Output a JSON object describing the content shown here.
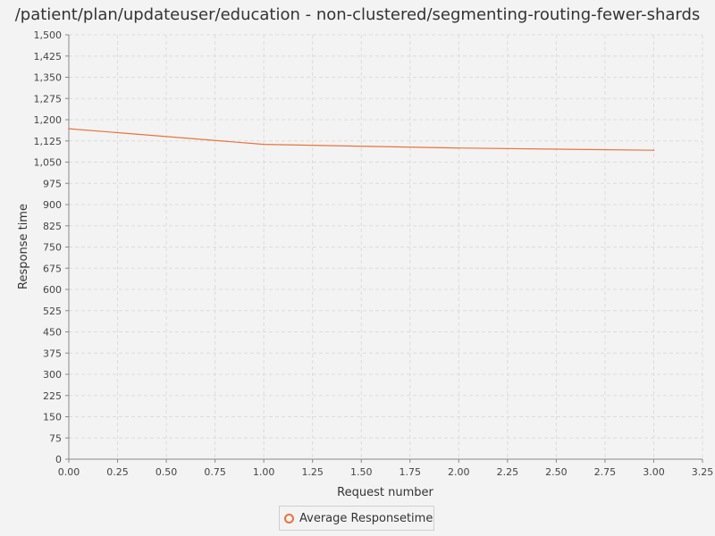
{
  "chart_data": {
    "type": "line",
    "title": "/patient/plan/updateuser/education - non-clustered/segmenting-routing-fewer-shards",
    "xlabel": "Request number",
    "ylabel": "Response time",
    "xlim": [
      0,
      3.25
    ],
    "ylim": [
      0,
      1500
    ],
    "x_ticks": [
      "0.00",
      "0.25",
      "0.50",
      "0.75",
      "1.00",
      "1.25",
      "1.50",
      "1.75",
      "2.00",
      "2.25",
      "2.50",
      "2.75",
      "3.00",
      "3.25"
    ],
    "y_ticks": [
      "0",
      "75",
      "150",
      "225",
      "300",
      "375",
      "450",
      "525",
      "600",
      "675",
      "750",
      "825",
      "900",
      "975",
      "1,050",
      "1,125",
      "1,200",
      "1,275",
      "1,350",
      "1,425",
      "1,500"
    ],
    "grid": true,
    "legend_position": "bottom",
    "series": [
      {
        "name": "Average Responsetime",
        "color": "#e8733d",
        "x": [
          0,
          1,
          2,
          3
        ],
        "y": [
          1168,
          1113,
          1100,
          1092
        ]
      }
    ]
  }
}
